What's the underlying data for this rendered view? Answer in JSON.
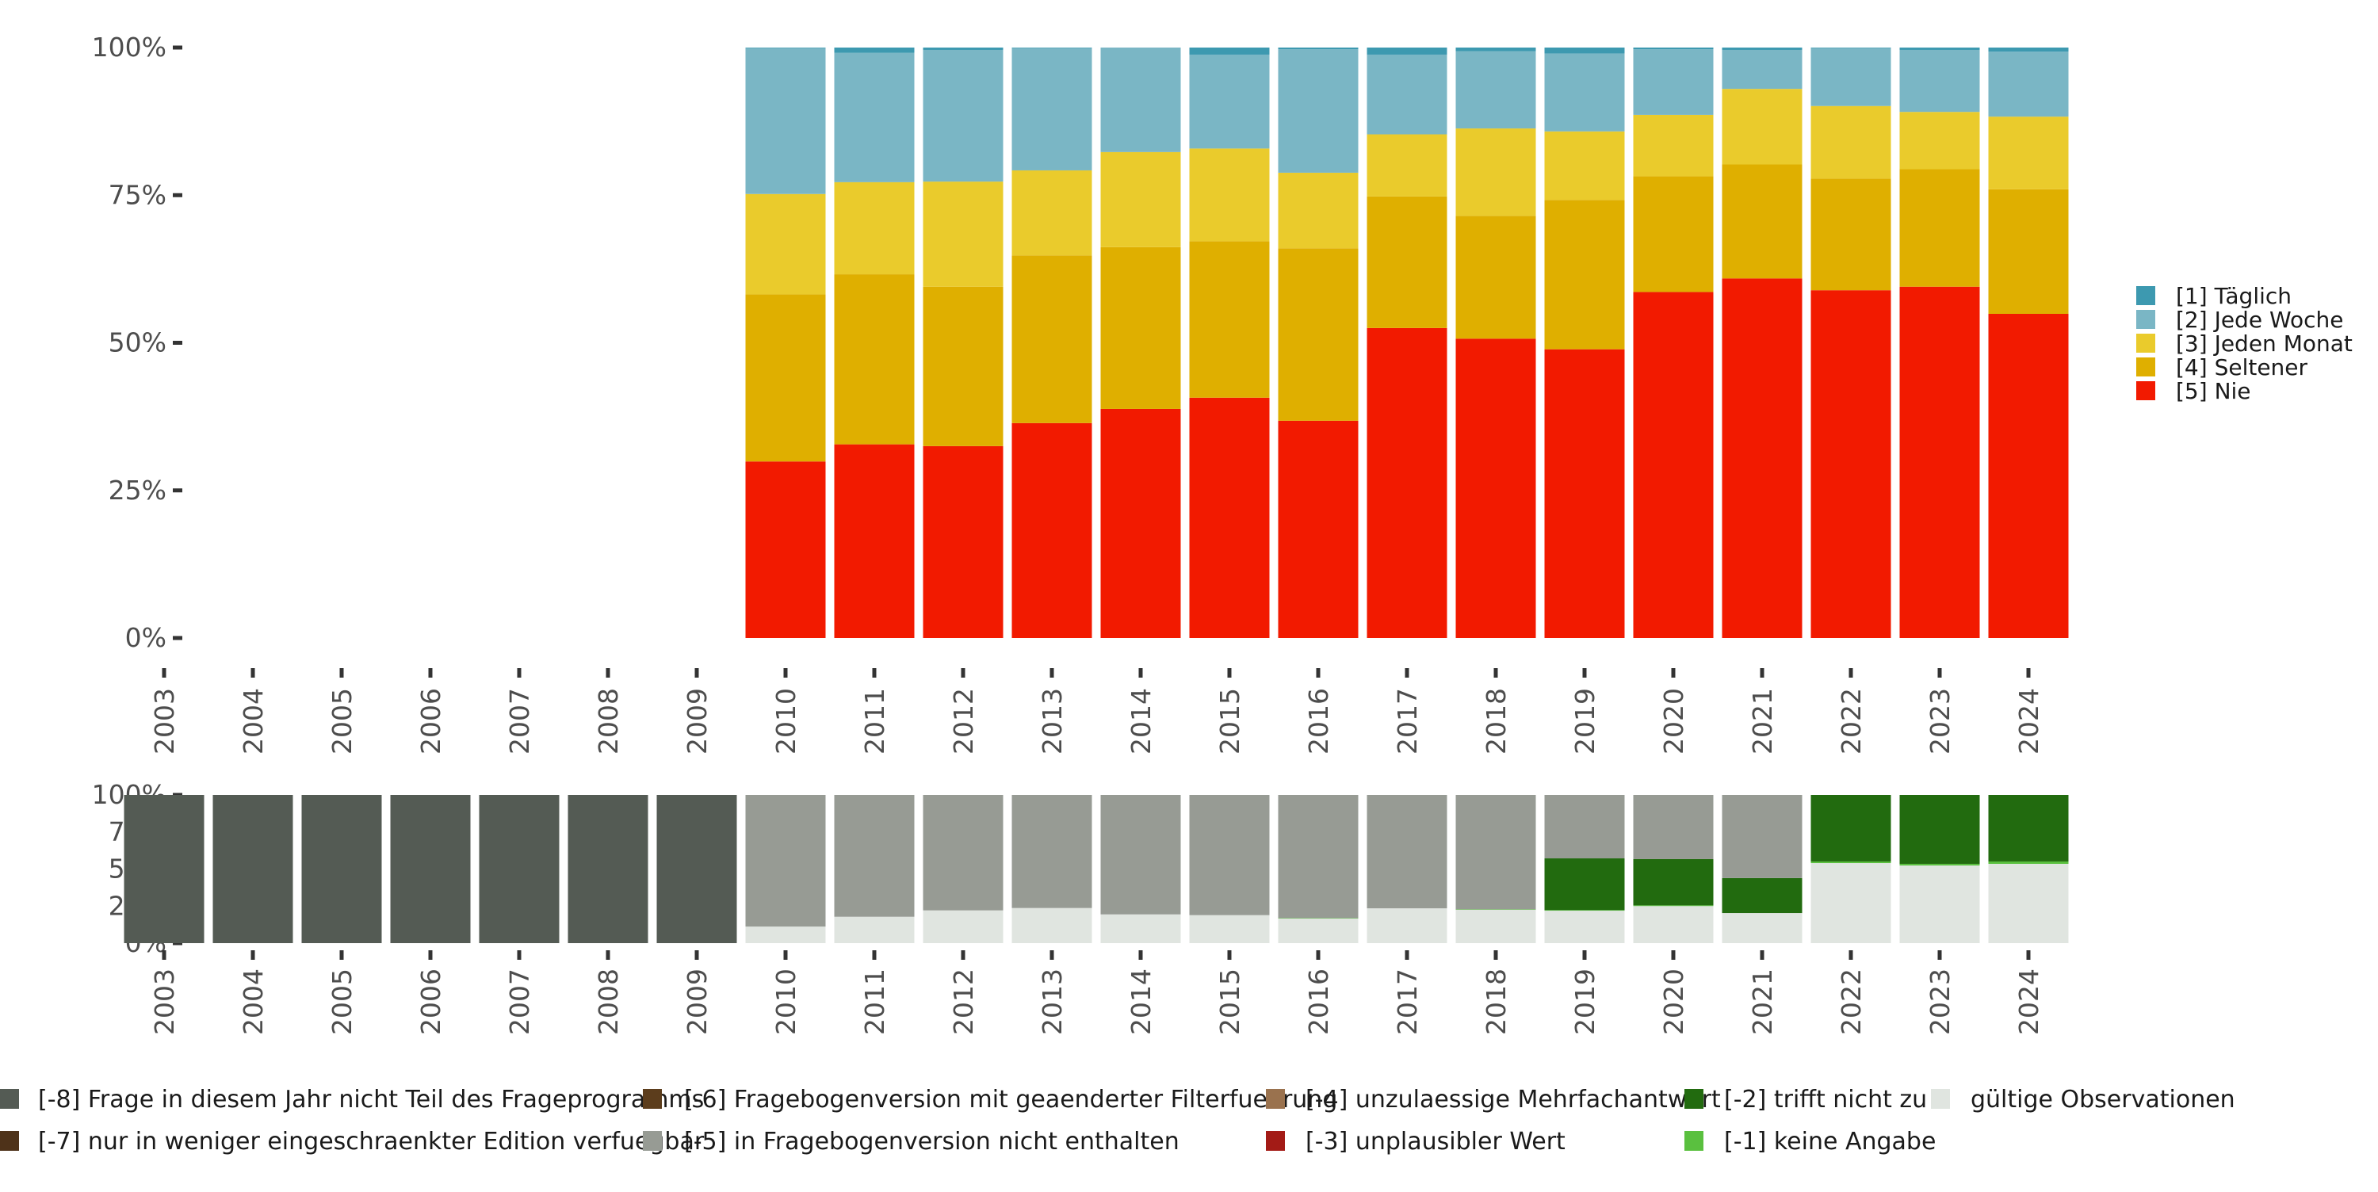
{
  "chart_data": [
    {
      "id": "main",
      "type": "bar",
      "stacked": true,
      "normalized": true,
      "title": "",
      "xlabel": "",
      "ylabel": "",
      "ylim": [
        0,
        100
      ],
      "y_ticks": [
        "0%",
        "25%",
        "50%",
        "75%",
        "100%"
      ],
      "grid": false,
      "legend_position": "right",
      "categories": [
        "2003",
        "2004",
        "2005",
        "2006",
        "2007",
        "2008",
        "2009",
        "2010",
        "2011",
        "2012",
        "2013",
        "2014",
        "2015",
        "2016",
        "2017",
        "2018",
        "2019",
        "2020",
        "2021",
        "2022",
        "2023",
        "2024"
      ],
      "series": [
        {
          "name": "[5] Nie",
          "color": "#f21a00",
          "values": [
            null,
            null,
            null,
            null,
            null,
            null,
            null,
            29.9,
            32.8,
            32.5,
            36.4,
            38.8,
            40.7,
            36.8,
            52.5,
            50.7,
            48.9,
            58.6,
            60.9,
            58.9,
            59.5,
            54.9
          ]
        },
        {
          "name": "[4] Seltener",
          "color": "#dfaf00",
          "values": [
            null,
            null,
            null,
            null,
            null,
            null,
            null,
            28.3,
            28.8,
            27.0,
            28.4,
            27.4,
            26.5,
            29.2,
            22.3,
            20.8,
            25.3,
            19.6,
            19.3,
            18.9,
            19.9,
            21.1
          ]
        },
        {
          "name": "[3] Jeden Monat",
          "color": "#eacb2c",
          "values": [
            null,
            null,
            null,
            null,
            null,
            null,
            null,
            17.0,
            15.6,
            17.8,
            14.4,
            16.1,
            15.7,
            12.8,
            10.5,
            14.8,
            11.6,
            10.4,
            12.8,
            12.3,
            9.7,
            12.3
          ]
        },
        {
          "name": "[2] Jede Woche",
          "color": "#7ab6c5",
          "values": [
            null,
            null,
            null,
            null,
            null,
            null,
            null,
            24.7,
            21.9,
            22.3,
            20.7,
            17.7,
            15.9,
            20.9,
            13.5,
            13.1,
            13.2,
            11.1,
            6.6,
            9.8,
            10.5,
            11.0
          ]
        },
        {
          "name": "[1] Täglich",
          "color": "#3d99b0",
          "values": [
            null,
            null,
            null,
            null,
            null,
            null,
            null,
            0.1,
            0.9,
            0.4,
            0.1,
            0.0,
            1.2,
            0.3,
            1.2,
            0.6,
            1.0,
            0.3,
            0.4,
            0.1,
            0.4,
            0.7
          ]
        }
      ],
      "legend": [
        {
          "label": "[1] Täglich",
          "color": "#3d99b0"
        },
        {
          "label": "[2] Jede Woche",
          "color": "#7ab6c5"
        },
        {
          "label": "[3] Jeden Monat",
          "color": "#eacb2c"
        },
        {
          "label": "[4] Seltener",
          "color": "#dfaf00"
        },
        {
          "label": "[5] Nie",
          "color": "#f21a00"
        }
      ]
    },
    {
      "id": "missing",
      "type": "bar",
      "stacked": true,
      "normalized": true,
      "title": "",
      "xlabel": "",
      "ylabel": "",
      "ylim": [
        0,
        100
      ],
      "y_ticks": [
        "0%",
        "25%",
        "50%",
        "75%",
        "100%"
      ],
      "grid": false,
      "legend_position": "bottom",
      "categories": [
        "2003",
        "2004",
        "2005",
        "2006",
        "2007",
        "2008",
        "2009",
        "2010",
        "2011",
        "2012",
        "2013",
        "2014",
        "2015",
        "2016",
        "2017",
        "2018",
        "2019",
        "2020",
        "2021",
        "2022",
        "2023",
        "2024"
      ],
      "series": [
        {
          "name": "gültige Observationen",
          "color": "#e0e5e0",
          "values": [
            0,
            0,
            0,
            0,
            0,
            0,
            0,
            11.2,
            17.8,
            22.1,
            23.7,
            19.4,
            18.9,
            16.6,
            23.5,
            22.5,
            21.9,
            25.0,
            20.3,
            54.0,
            52.4,
            53.5
          ]
        },
        {
          "name": "[-1] keine Angabe",
          "color": "#5ac03f",
          "values": [
            0,
            0,
            0,
            0,
            0,
            0,
            0,
            0,
            0,
            0,
            0,
            0,
            0,
            0.3,
            0,
            0.3,
            0.4,
            0.5,
            0,
            1.1,
            1.1,
            1.6
          ]
        },
        {
          "name": "[-2] trifft nicht zu",
          "color": "#226b0f",
          "values": [
            0,
            0,
            0,
            0,
            0,
            0,
            0,
            0,
            0,
            0,
            0,
            0,
            0,
            0,
            0,
            0,
            34.9,
            31.2,
            23.6,
            44.9,
            46.5,
            44.9
          ]
        },
        {
          "name": "[-3] unplausibler Wert",
          "color": "#a31b16",
          "values": [
            0,
            0,
            0,
            0,
            0,
            0,
            0,
            0,
            0,
            0,
            0,
            0,
            0,
            0,
            0,
            0,
            0,
            0,
            0,
            0,
            0,
            0
          ]
        },
        {
          "name": "[-4] unzulaessige Mehrfachantwort",
          "color": "#9a724e",
          "values": [
            0,
            0,
            0,
            0,
            0,
            0,
            0,
            0,
            0,
            0,
            0,
            0,
            0,
            0,
            0,
            0,
            0,
            0,
            0,
            0,
            0,
            0
          ]
        },
        {
          "name": "[-5] in Fragebogenversion nicht enthalten",
          "color": "#979b94",
          "values": [
            0,
            0,
            0,
            0,
            0,
            0,
            0,
            88.8,
            82.2,
            77.9,
            76.3,
            80.6,
            81.1,
            83.1,
            76.5,
            77.2,
            42.8,
            43.3,
            56.1,
            0,
            0,
            0
          ]
        },
        {
          "name": "[-6] Fragebogenversion mit geaenderter Filterfuehrung",
          "color": "#5c3d1c",
          "values": [
            0,
            0,
            0,
            0,
            0,
            0,
            0,
            0,
            0,
            0,
            0,
            0,
            0,
            0,
            0,
            0,
            0,
            0,
            0,
            0,
            0,
            0
          ]
        },
        {
          "name": "[-7] nur in weniger eingeschraenkter Edition verfuegbar",
          "color": "#4e3219",
          "values": [
            0,
            0,
            0,
            0,
            0,
            0,
            0,
            0,
            0,
            0,
            0,
            0,
            0,
            0,
            0,
            0,
            0,
            0,
            0,
            0,
            0,
            0
          ]
        },
        {
          "name": "[-8] Frage in diesem Jahr nicht Teil des Frageprogramms",
          "color": "#545b54",
          "values": [
            100,
            100,
            100,
            100,
            100,
            100,
            100,
            0,
            0,
            0,
            0,
            0,
            0,
            0,
            0,
            0,
            0,
            0,
            0,
            0,
            0,
            0
          ]
        }
      ],
      "legend": [
        {
          "label": "[-8] Frage in diesem Jahr nicht Teil des Frageprogramms",
          "color": "#545b54"
        },
        {
          "label": "[-7] nur in weniger eingeschraenkter Edition verfuegbar",
          "color": "#4e3219"
        },
        {
          "label": "[-6] Fragebogenversion mit geaenderter Filterfuehrung",
          "color": "#5c3d1c"
        },
        {
          "label": "[-5] in Fragebogenversion nicht enthalten",
          "color": "#979b94"
        },
        {
          "label": "[-4] unzulaessige Mehrfachantwort",
          "color": "#9a724e"
        },
        {
          "label": "[-3] unplausibler Wert",
          "color": "#a31b16"
        },
        {
          "label": "[-2] trifft nicht zu",
          "color": "#226b0f"
        },
        {
          "label": "[-1] keine Angabe",
          "color": "#5ac03f"
        },
        {
          "label": "gültige Observationen",
          "color": "#e0e5e0"
        }
      ]
    }
  ]
}
